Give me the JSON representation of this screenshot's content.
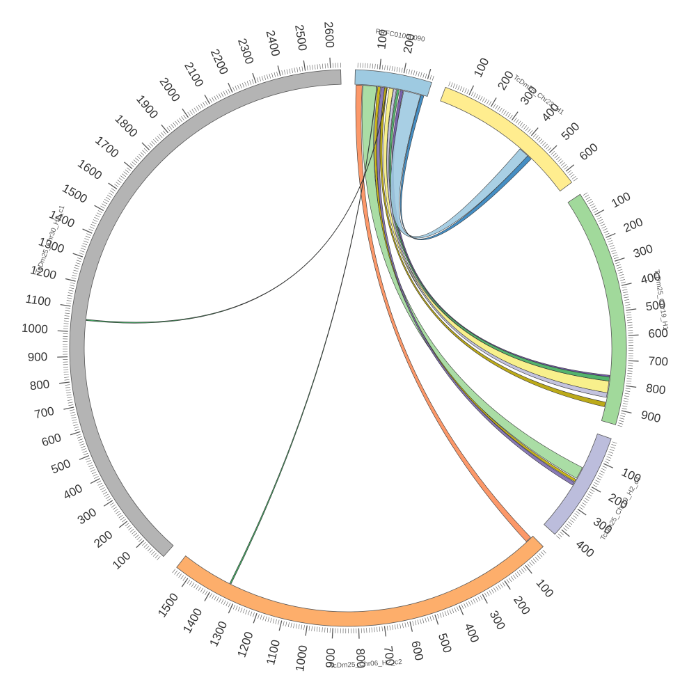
{
  "chromosomes": [
    {
      "id": "prfc",
      "name": "PRFC01000090",
      "length": 320,
      "color": "#9ecae1",
      "start_angle": 1.5,
      "end_angle": 17.5,
      "tick_labels": [
        "100",
        "200"
      ]
    },
    {
      "id": "chr23",
      "name": "TcDm25_Chr23_H1",
      "length": 650,
      "color": "#ffed8f",
      "start_angle": 20.5,
      "end_angle": 53.5,
      "tick_labels": [
        "100",
        "200",
        "300",
        "400",
        "500",
        "600"
      ]
    },
    {
      "id": "chr19h1",
      "name": "TcDm25_Chr19_H1",
      "length": 960,
      "color": "#a1d99b",
      "start_angle": 56.5,
      "end_angle": 106,
      "tick_labels": [
        "100",
        "200",
        "300",
        "400",
        "500",
        "600",
        "700",
        "800",
        "900"
      ]
    },
    {
      "id": "chr19c4",
      "name": "TcDm25_Chr19_H2_c4",
      "length": 430,
      "color": "#bcbddc",
      "start_angle": 109,
      "end_angle": 132,
      "tick_labels": [
        "100",
        "200",
        "300",
        "400"
      ]
    },
    {
      "id": "chr06",
      "name": "TcDm25_Chr06_H2_c2",
      "length": 1560,
      "color": "#fdae6b",
      "start_angle": 135.5,
      "end_angle": 218,
      "tick_labels": [
        "100",
        "200",
        "300",
        "400",
        "500",
        "600",
        "700",
        "800",
        "900",
        "1000",
        "1100",
        "1200",
        "1300",
        "1400",
        "1500"
      ]
    },
    {
      "id": "chr30",
      "name": "TcDm25_Chr30_H2_c1",
      "length": 2640,
      "color": "#b4b4b4",
      "start_angle": 221.5,
      "end_angle": 358.5,
      "tick_labels": [
        "100",
        "200",
        "300",
        "400",
        "500",
        "600",
        "700",
        "800",
        "900",
        "1000",
        "1100",
        "1200",
        "1300",
        "1400",
        "1500",
        "1600",
        "1700",
        "1800",
        "1900",
        "2000",
        "2100",
        "2200",
        "2300",
        "2400",
        "2500",
        "2600"
      ]
    }
  ],
  "links": [
    {
      "from": "prfc",
      "from_range": [
        5,
        32
      ],
      "to": "chr06",
      "to_range": [
        10,
        35
      ],
      "color": "#fc8d59"
    },
    {
      "from": "prfc",
      "from_range": [
        35,
        95
      ],
      "to": "chr19c4",
      "to_range": [
        150,
        200
      ],
      "color": "#a1d99b"
    },
    {
      "from": "prfc",
      "from_range": [
        100,
        112
      ],
      "to": "chr19c4",
      "to_range": [
        205,
        215
      ],
      "color": "#c9b000"
    },
    {
      "from": "prfc",
      "from_range": [
        115,
        130
      ],
      "to": "chr19c4",
      "to_range": [
        218,
        232
      ],
      "color": "#7c6bb0"
    },
    {
      "from": "prfc",
      "from_range": [
        130,
        142
      ],
      "to": "chr19h1",
      "to_range": [
        880,
        900
      ],
      "color": "#b5a100"
    },
    {
      "from": "prfc",
      "from_range": [
        150,
        168
      ],
      "to": "chr19h1",
      "to_range": [
        790,
        840
      ],
      "color": "#f7ee7f"
    },
    {
      "from": "prfc",
      "from_range": [
        170,
        182
      ],
      "to": "chr19h1",
      "to_range": [
        840,
        860
      ],
      "color": "#bcbddc"
    },
    {
      "from": "prfc",
      "from_range": [
        185,
        195
      ],
      "to": "chr19h1",
      "to_range": [
        770,
        790
      ],
      "color": "#41ab5d"
    },
    {
      "from": "prfc",
      "from_range": [
        200,
        212
      ],
      "to": "chr19h1",
      "to_range": [
        765,
        772
      ],
      "color": "#6a51a3"
    },
    {
      "from": "prfc",
      "from_range": [
        215,
        290
      ],
      "to": "chr23",
      "to_range": [
        400,
        445
      ],
      "color": "#9ecae1"
    },
    {
      "from": "prfc",
      "from_range": [
        292,
        305
      ],
      "to": "chr23",
      "to_range": [
        445,
        465
      ],
      "color": "#3182bd"
    },
    {
      "from": "chr06",
      "from_range": [
        1340,
        1346
      ],
      "to": "prfc",
      "to_range": [
        95,
        97
      ],
      "color": "#31a354"
    },
    {
      "from": "chr30",
      "from_range": [
        1050,
        1055
      ],
      "to": "prfc",
      "to_range": [
        140,
        142
      ],
      "color": "#31a354"
    }
  ]
}
